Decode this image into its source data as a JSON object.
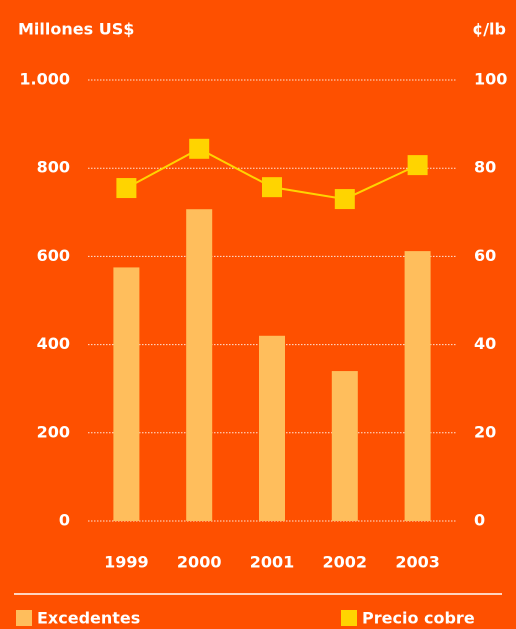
{
  "chart_data": {
    "type": "bar-line",
    "y_label": "Millones US$",
    "y2_label": "¢/lb",
    "categories": [
      "1999",
      "2000",
      "2001",
      "2002",
      "2003"
    ],
    "series": [
      {
        "name": "Excedentes",
        "color": "#ffbe5c",
        "type": "bar",
        "values": [
          575,
          707,
          420,
          340,
          612
        ]
      },
      {
        "name": "Precio cobre",
        "color": "#ffd400",
        "type": "line",
        "axis": "y2",
        "values": [
          75.5,
          84.4,
          75.7,
          73,
          80.7
        ]
      }
    ],
    "ylim": [
      0,
      1000
    ],
    "yticks": [
      0,
      200,
      400,
      600,
      800,
      {
        "value": 1000,
        "label": "1.000"
      }
    ],
    "y2lim": [
      0,
      100
    ],
    "y2ticks": [
      0,
      20,
      40,
      60,
      80,
      100
    ],
    "grid": true
  }
}
